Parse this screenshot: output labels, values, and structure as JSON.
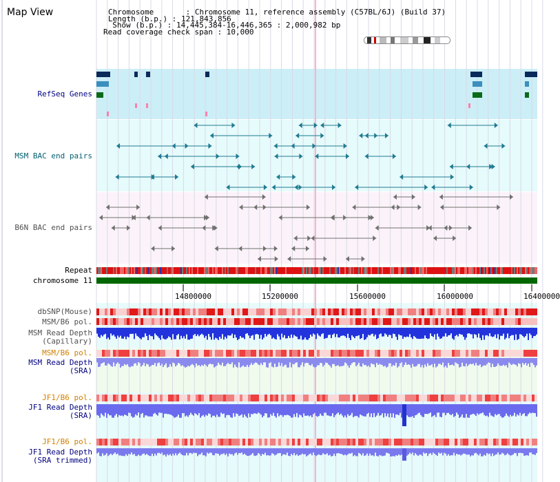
{
  "header": {
    "title": "Map View",
    "info_lines": [
      "Chromosome       : Chromosome 11, reference assembly (C57BL/6J) (Build 37)",
      "Length (b.p.) : 121,843,856",
      "  Show (b.p.) : 14,445,384-16,446,365 : 2,000,982 bp",
      "Read coverage check span : 10,000"
    ]
  },
  "ideogram": {
    "name": "chromosome-ideogram"
  },
  "tracks": {
    "refseq": {
      "label": "RefSeq Genes",
      "color": "#000080",
      "bg": "#cceef7"
    },
    "msm_bac": {
      "label": "MSM BAC end pairs",
      "color": "#006070",
      "bg": "#e6fbfb"
    },
    "b6n_bac": {
      "label": "B6N BAC end pairs",
      "color": "#505050",
      "bg": "#fbf0f8"
    },
    "repeat": {
      "label": "Repeat"
    },
    "chrom": {
      "label": "chromosome 11",
      "color": "#006600"
    },
    "dbsnp": {
      "label": "dbSNP(Mouse)",
      "color": "#505050"
    },
    "msm_b6_pol": {
      "label": "MSM/B6 pol.",
      "color": "#505050"
    },
    "msm_depth_cap": {
      "label": "MSM Read Depth\n(Capillary)",
      "color": "#505050"
    },
    "msm_b6_pol2": {
      "label": "MSM/B6 pol.",
      "color": "#d08000"
    },
    "msm_depth_sra": {
      "label": "MSM Read Depth\n(SRA)",
      "color": "#000080"
    },
    "jf1_b6_pol": {
      "label": "JF1/B6 pol.",
      "color": "#d08000"
    },
    "jf1_depth_sra": {
      "label": "JF1 Read Depth\n(SRA)",
      "color": "#000080"
    },
    "jf1_b6_pol2": {
      "label": "JF1/B6 pol.",
      "color": "#d08000"
    },
    "jf1_depth_trim": {
      "label": "JF1 Read Depth\n(SRA trimmed)",
      "color": "#000080"
    }
  },
  "axis": {
    "ticks": [
      "14800000",
      "15200000",
      "15600000",
      "16000000",
      "16400000"
    ],
    "range": [
      14445384,
      16446365
    ]
  },
  "colors": {
    "grid": "#d9d9e6",
    "highlight": "#ff80b0"
  }
}
